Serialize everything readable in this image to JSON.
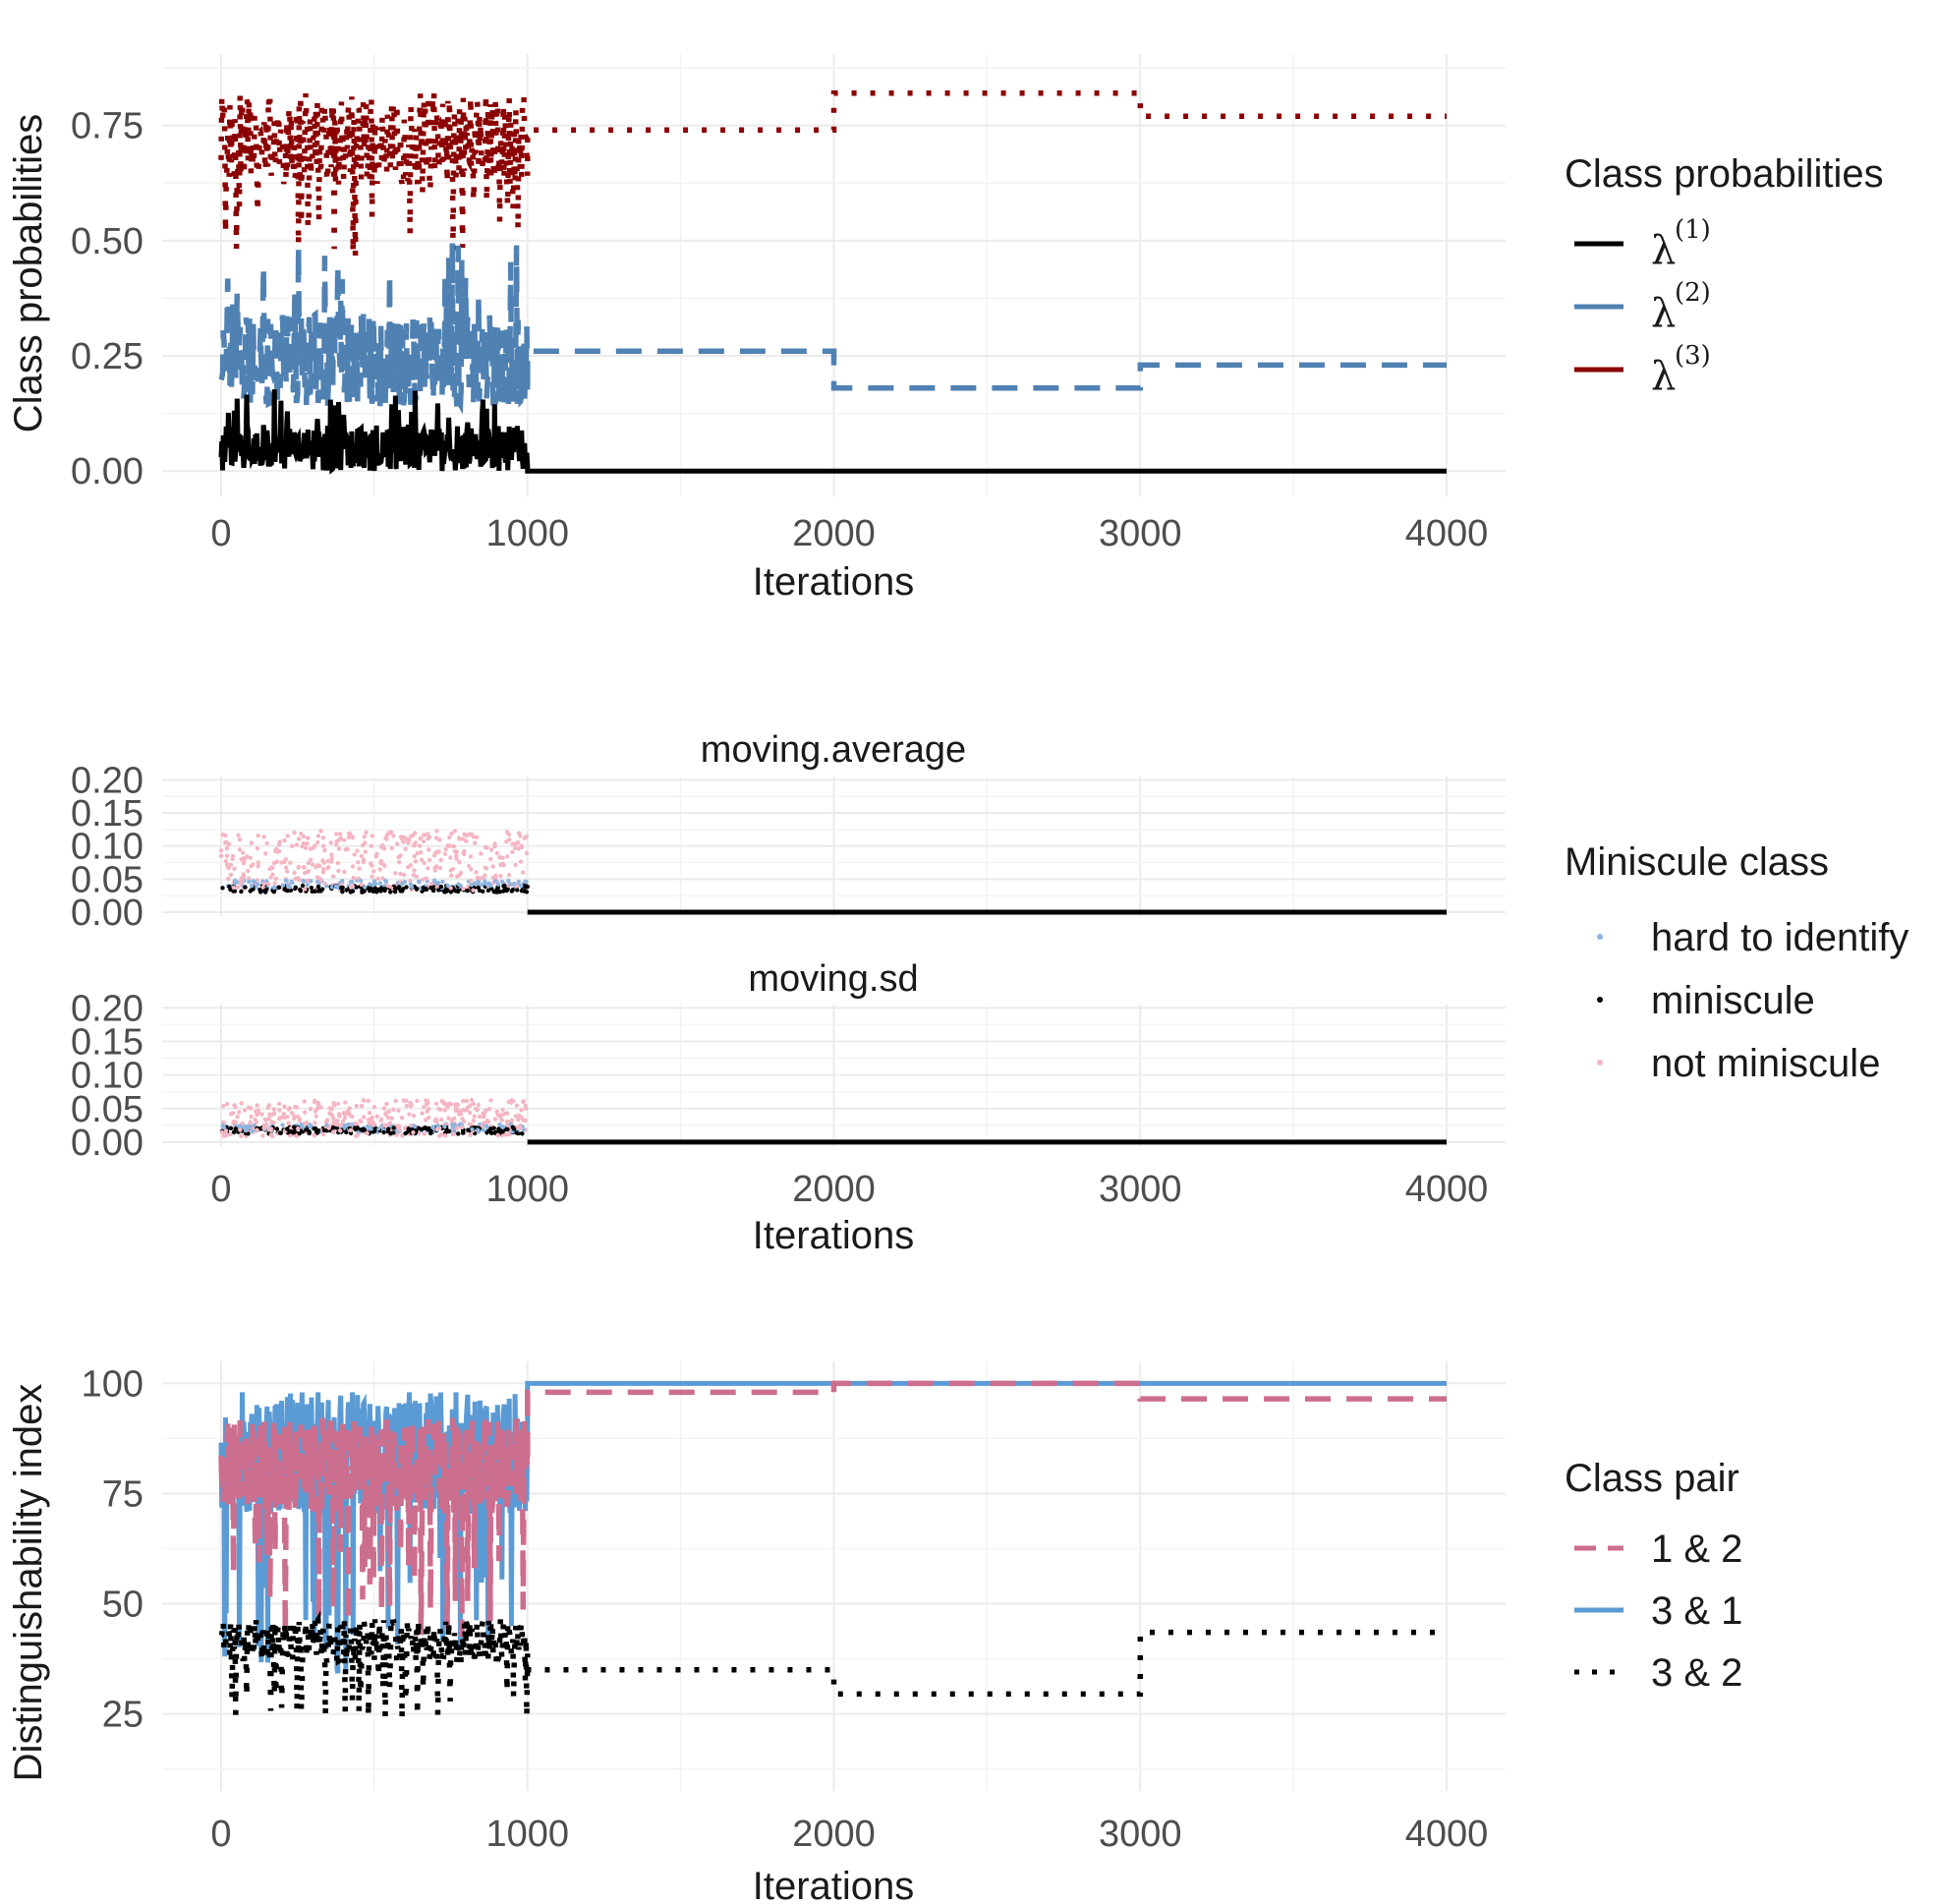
{
  "chart_data": [
    {
      "type": "line",
      "xlabel": "Iterations",
      "ylabel": "Class probabilities",
      "xlim": [
        0,
        4000
      ],
      "ylim": [
        0,
        0.9
      ],
      "x_ticks": [
        "0",
        "1000",
        "2000",
        "3000",
        "4000"
      ],
      "y_ticks": [
        "0.00",
        "0.25",
        "0.50",
        "0.75"
      ],
      "grid": true,
      "legend": {
        "title": "Class probabilities",
        "placement": "right",
        "entries": [
          {
            "symbol": "λ",
            "sup": "(1)",
            "color": "#000000",
            "linetype": "solid"
          },
          {
            "symbol": "λ",
            "sup": "(2)",
            "color": "#4f81b3",
            "linetype": "dashed"
          },
          {
            "symbol": "λ",
            "sup": "(3)",
            "color": "#8b0000",
            "linetype": "dotted"
          }
        ]
      },
      "series": [
        {
          "color": "#8b0000",
          "linetype": "dotted",
          "noisy": {
            "x": [
              0,
              1000
            ],
            "mean": 0.72,
            "spread": 0.1
          },
          "steps": [
            {
              "x": [
                1000,
                2000
              ],
              "y": 0.74
            },
            {
              "x": [
                2000,
                3000
              ],
              "y": 0.82
            },
            {
              "x": [
                3000,
                4000
              ],
              "y": 0.77
            }
          ]
        },
        {
          "color": "#4f81b3",
          "linetype": "dashed",
          "noisy": {
            "x": [
              0,
              1000
            ],
            "mean": 0.24,
            "spread": 0.1
          },
          "steps": [
            {
              "x": [
                1000,
                2000
              ],
              "y": 0.26
            },
            {
              "x": [
                2000,
                3000
              ],
              "y": 0.18
            },
            {
              "x": [
                3000,
                4000
              ],
              "y": 0.23
            }
          ]
        },
        {
          "color": "#000000",
          "linetype": "solid",
          "noisy": {
            "x": [
              0,
              1000
            ],
            "mean": 0.05,
            "spread": 0.05
          },
          "steps": [
            {
              "x": [
                1000,
                4000
              ],
              "y": 0.0
            }
          ]
        }
      ]
    },
    {
      "type": "scatter",
      "facets": [
        "moving.average",
        "moving.sd"
      ],
      "xlabel": "Iterations",
      "ylabel": "",
      "xlim": [
        0,
        4000
      ],
      "ylim": [
        0,
        0.2
      ],
      "x_ticks": [
        "0",
        "1000",
        "2000",
        "3000",
        "4000"
      ],
      "y_ticks": [
        "0.00",
        "0.05",
        "0.10",
        "0.15",
        "0.20"
      ],
      "grid": true,
      "legend": {
        "title": "Miniscule class",
        "placement": "right",
        "entries": [
          {
            "label": "hard to identify",
            "color": "#8db6e0"
          },
          {
            "label": "miniscule",
            "color": "#000000"
          },
          {
            "label": "not miniscule",
            "color": "#f4b6c2"
          }
        ]
      },
      "series": [
        {
          "name": "moving.average",
          "noisy_x": [
            0,
            1000
          ],
          "mean": 0.06,
          "spread": 0.05,
          "after_1000": 0.0
        },
        {
          "name": "moving.sd",
          "noisy_x": [
            0,
            1000
          ],
          "mean": 0.025,
          "spread": 0.03,
          "after_1000": 0.0
        }
      ]
    },
    {
      "type": "line",
      "xlabel": "Iterations",
      "ylabel": "Distinguishability index",
      "xlim": [
        0,
        4000
      ],
      "ylim": [
        12,
        105
      ],
      "x_ticks": [
        "0",
        "1000",
        "2000",
        "3000",
        "4000"
      ],
      "y_ticks": [
        "25",
        "50",
        "75",
        "100"
      ],
      "grid": true,
      "legend": {
        "title": "Class pair",
        "placement": "right",
        "entries": [
          {
            "label": "1 & 2",
            "color": "#cc6e8e",
            "linetype": "dashed"
          },
          {
            "label": "3 & 1",
            "color": "#5b9bd5",
            "linetype": "solid"
          },
          {
            "label": "3 & 2",
            "color": "#000000",
            "linetype": "dotted"
          }
        ]
      },
      "series": [
        {
          "color": "#5b9bd5",
          "linetype": "solid",
          "noisy": {
            "x": [
              0,
              1000
            ],
            "mean": 80,
            "spread": 28
          },
          "steps": [
            {
              "x": [
                1000,
                4000
              ],
              "y": 100
            }
          ]
        },
        {
          "color": "#cc6e8e",
          "linetype": "dashed",
          "noisy": {
            "x": [
              0,
              1000
            ],
            "mean": 78,
            "spread": 22
          },
          "steps": [
            {
              "x": [
                1000,
                2000
              ],
              "y": 98
            },
            {
              "x": [
                2000,
                3000
              ],
              "y": 100
            },
            {
              "x": [
                3000,
                4000
              ],
              "y": 96.5
            }
          ]
        },
        {
          "color": "#000000",
          "linetype": "dotted",
          "noisy": {
            "x": [
              0,
              1000
            ],
            "mean": 40,
            "spread": 10
          },
          "steps": [
            {
              "x": [
                1000,
                2000
              ],
              "y": 35
            },
            {
              "x": [
                2000,
                3000
              ],
              "y": 29.5
            },
            {
              "x": [
                3000,
                4000
              ],
              "y": 43.5
            }
          ]
        }
      ]
    }
  ]
}
